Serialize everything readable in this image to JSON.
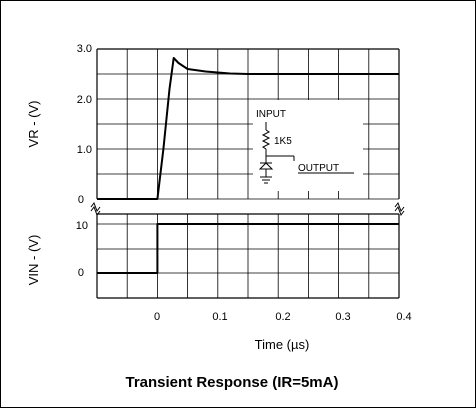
{
  "chart_data": {
    "type": "line",
    "title": "Transient Response (IR=5mA)",
    "xlabel": "Time (µs)",
    "x_ticks": [
      "0",
      "0.1",
      "0.2",
      "0.3",
      "0.4"
    ],
    "xlim": [
      -0.1,
      0.4
    ],
    "panels": [
      {
        "ylabel": "VR - (V)",
        "y_ticks": [
          "3.0",
          "2.0",
          "1.0",
          "0"
        ],
        "ylim": [
          0,
          3.0
        ],
        "series": [
          {
            "x": [
              -0.1,
              0.0,
              0.01,
              0.02,
              0.027,
              0.035,
              0.05,
              0.08,
              0.12,
              0.15,
              0.2,
              0.3,
              0.4
            ],
            "y": [
              0,
              0,
              1.0,
              2.2,
              2.82,
              2.72,
              2.6,
              2.55,
              2.51,
              2.5,
              2.5,
              2.5,
              2.5
            ]
          }
        ]
      },
      {
        "ylabel": "VIN - (V)",
        "y_ticks": [
          "10",
          "0"
        ],
        "ylim": [
          -4,
          12
        ],
        "series": [
          {
            "x": [
              -0.1,
              0.0,
              0.0,
              0.4
            ],
            "y": [
              0,
              0,
              10,
              10
            ]
          }
        ]
      }
    ],
    "inset": {
      "input_label": "INPUT",
      "resistor_label": "1K5",
      "output_label": "OUTPUT"
    },
    "grid": true
  }
}
